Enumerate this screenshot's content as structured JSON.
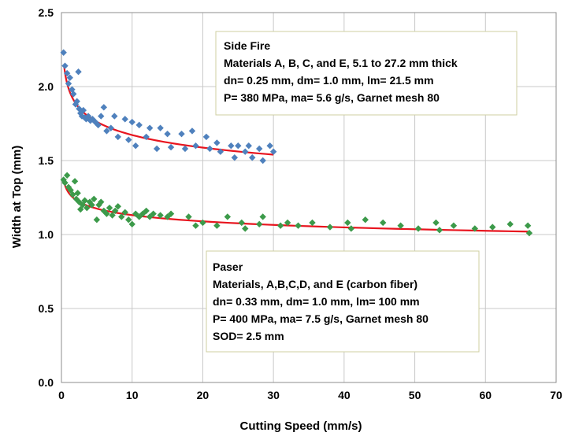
{
  "chart_data": {
    "type": "scatter",
    "title": "",
    "xlabel": "Cutting Speed (mm/s)",
    "ylabel": "Width at Top (mm)",
    "xlim": [
      0,
      70
    ],
    "ylim": [
      0.0,
      2.5
    ],
    "xticks": [
      "0",
      "10",
      "20",
      "30",
      "40",
      "50",
      "60",
      "70"
    ],
    "yticks": [
      "0.0",
      "0.5",
      "1.0",
      "1.5",
      "2.0",
      "2.5"
    ],
    "grid": true,
    "colors": {
      "side_fire": "#4f81bd",
      "paser": "#3c9a4a",
      "fit": "#e8141e",
      "grid": "#c8c8c8",
      "box_border": "#cfcfa0"
    },
    "annotations": [
      {
        "id": "side-fire",
        "lines": [
          "Side Fire",
          "Materials A, B, C, and E,  5.1 to 27.2 mm thick",
          "dn= 0.25 mm, dm= 1.0 mm,  lm= 21.5 mm",
          "P= 380 MPa, ma= 5.6 g/s, Garnet mesh 80"
        ]
      },
      {
        "id": "paser",
        "lines": [
          "Paser",
          "Materials, A,B,C,D, and E (carbon fiber)",
          "dn= 0.33 mm, dm= 1.0 mm,  lm= 100 mm",
          "P= 400 MPa, ma= 7.5 g/s, Garnet mesh 80",
          "SOD= 2.5 mm"
        ]
      }
    ],
    "series": [
      {
        "marker": "diamond",
        "color": "#4f81bd",
        "points": [
          [
            0.3,
            2.23
          ],
          [
            0.5,
            2.14
          ],
          [
            0.8,
            2.09
          ],
          [
            1.0,
            2.02
          ],
          [
            1.2,
            2.06
          ],
          [
            1.5,
            1.98
          ],
          [
            1.7,
            1.95
          ],
          [
            2.0,
            1.88
          ],
          [
            2.2,
            1.9
          ],
          [
            2.4,
            2.1
          ],
          [
            2.5,
            1.85
          ],
          [
            2.7,
            1.82
          ],
          [
            2.9,
            1.8
          ],
          [
            3.1,
            1.84
          ],
          [
            3.3,
            1.79
          ],
          [
            3.5,
            1.78
          ],
          [
            3.8,
            1.8
          ],
          [
            4.1,
            1.77
          ],
          [
            4.4,
            1.78
          ],
          [
            4.8,
            1.76
          ],
          [
            5.2,
            1.74
          ],
          [
            5.6,
            1.8
          ],
          [
            6.0,
            1.86
          ],
          [
            6.4,
            1.7
          ],
          [
            7.0,
            1.72
          ],
          [
            7.5,
            1.8
          ],
          [
            8.0,
            1.66
          ],
          [
            9.0,
            1.78
          ],
          [
            9.5,
            1.64
          ],
          [
            10.0,
            1.76
          ],
          [
            10.5,
            1.6
          ],
          [
            11.0,
            1.74
          ],
          [
            12.0,
            1.66
          ],
          [
            12.5,
            1.72
          ],
          [
            13.5,
            1.58
          ],
          [
            14.0,
            1.72
          ],
          [
            15.0,
            1.68
          ],
          [
            15.5,
            1.59
          ],
          [
            17.0,
            1.68
          ],
          [
            17.5,
            1.58
          ],
          [
            18.5,
            1.7
          ],
          [
            19.0,
            1.6
          ],
          [
            20.5,
            1.66
          ],
          [
            21.0,
            1.58
          ],
          [
            22.0,
            1.62
          ],
          [
            22.5,
            1.56
          ],
          [
            24.0,
            1.6
          ],
          [
            24.5,
            1.52
          ],
          [
            25.0,
            1.6
          ],
          [
            26.0,
            1.56
          ],
          [
            26.5,
            1.6
          ],
          [
            27.0,
            1.52
          ],
          [
            28.0,
            1.58
          ],
          [
            28.5,
            1.5
          ],
          [
            29.5,
            1.6
          ],
          [
            30.0,
            1.56
          ]
        ]
      },
      {
        "marker": "diamond",
        "color": "#3c9a4a",
        "points": [
          [
            0.3,
            1.37
          ],
          [
            0.5,
            1.35
          ],
          [
            0.8,
            1.4
          ],
          [
            1.0,
            1.32
          ],
          [
            1.3,
            1.3
          ],
          [
            1.6,
            1.27
          ],
          [
            1.9,
            1.36
          ],
          [
            2.1,
            1.24
          ],
          [
            2.3,
            1.28
          ],
          [
            2.5,
            1.22
          ],
          [
            2.7,
            1.17
          ],
          [
            3.0,
            1.2
          ],
          [
            3.3,
            1.23
          ],
          [
            3.6,
            1.18
          ],
          [
            4.0,
            1.22
          ],
          [
            4.3,
            1.2
          ],
          [
            4.6,
            1.24
          ],
          [
            5.0,
            1.1
          ],
          [
            5.3,
            1.2
          ],
          [
            5.6,
            1.22
          ],
          [
            6.0,
            1.16
          ],
          [
            6.4,
            1.14
          ],
          [
            6.8,
            1.18
          ],
          [
            7.2,
            1.13
          ],
          [
            7.6,
            1.16
          ],
          [
            8.0,
            1.19
          ],
          [
            8.5,
            1.12
          ],
          [
            9.0,
            1.15
          ],
          [
            9.5,
            1.1
          ],
          [
            10.0,
            1.07
          ],
          [
            10.5,
            1.14
          ],
          [
            11.0,
            1.12
          ],
          [
            11.5,
            1.14
          ],
          [
            12.0,
            1.16
          ],
          [
            12.5,
            1.12
          ],
          [
            13.0,
            1.14
          ],
          [
            14.0,
            1.13
          ],
          [
            15.0,
            1.12
          ],
          [
            15.5,
            1.14
          ],
          [
            18.0,
            1.12
          ],
          [
            19.0,
            1.06
          ],
          [
            20.0,
            1.08
          ],
          [
            22.0,
            1.06
          ],
          [
            23.5,
            1.12
          ],
          [
            25.5,
            1.08
          ],
          [
            26.0,
            1.04
          ],
          [
            28.0,
            1.07
          ],
          [
            28.5,
            1.12
          ],
          [
            31.0,
            1.06
          ],
          [
            32.0,
            1.08
          ],
          [
            33.5,
            1.06
          ],
          [
            35.5,
            1.08
          ],
          [
            38.0,
            1.05
          ],
          [
            40.5,
            1.08
          ],
          [
            41.0,
            1.04
          ],
          [
            43.0,
            1.1
          ],
          [
            45.5,
            1.08
          ],
          [
            48.0,
            1.06
          ],
          [
            50.5,
            1.04
          ],
          [
            53.0,
            1.08
          ],
          [
            53.5,
            1.03
          ],
          [
            55.5,
            1.06
          ],
          [
            58.5,
            1.04
          ],
          [
            61.0,
            1.05
          ],
          [
            63.5,
            1.07
          ],
          [
            66.0,
            1.06
          ],
          [
            66.2,
            1.01
          ]
        ]
      }
    ],
    "fits": [
      {
        "x": [
          0.4,
          30
        ],
        "y": [
          2.13,
          1.54
        ]
      },
      {
        "x": [
          0.4,
          66
        ],
        "y": [
          1.35,
          1.02
        ]
      }
    ]
  }
}
